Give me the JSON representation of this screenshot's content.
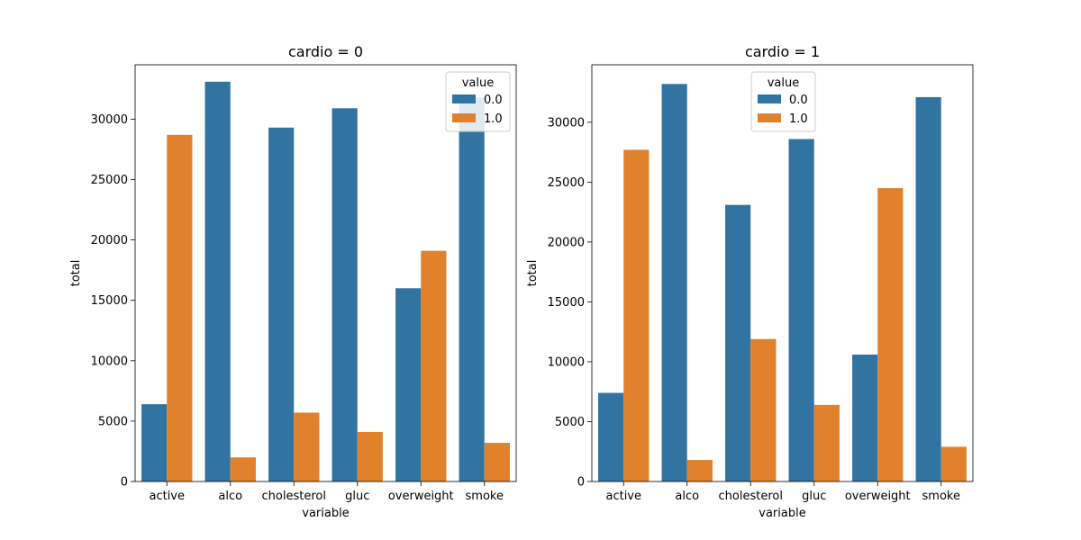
{
  "chart_data": [
    {
      "type": "bar",
      "title": "cardio = 0",
      "xlabel": "variable",
      "ylabel": "total",
      "ylim": [
        0,
        34500
      ],
      "yticks": [
        0,
        5000,
        10000,
        15000,
        20000,
        25000,
        30000
      ],
      "categories": [
        "active",
        "alco",
        "cholesterol",
        "gluc",
        "overweight",
        "smoke"
      ],
      "legend": {
        "title": "value",
        "placement": "top-right"
      },
      "series": [
        {
          "name": "0.0",
          "color": "#3274a1",
          "values": [
            6400,
            33100,
            29300,
            30900,
            16000,
            31800
          ]
        },
        {
          "name": "1.0",
          "color": "#e1812c",
          "values": [
            28700,
            2000,
            5700,
            4100,
            19100,
            3200
          ]
        }
      ]
    },
    {
      "type": "bar",
      "title": "cardio = 1",
      "xlabel": "variable",
      "ylabel": "total",
      "ylim": [
        0,
        34800
      ],
      "yticks": [
        0,
        5000,
        10000,
        15000,
        20000,
        25000,
        30000
      ],
      "categories": [
        "active",
        "alco",
        "cholesterol",
        "gluc",
        "overweight",
        "smoke"
      ],
      "legend": {
        "title": "value",
        "placement": "top-center"
      },
      "series": [
        {
          "name": "0.0",
          "color": "#3274a1",
          "values": [
            7400,
            33200,
            23100,
            28600,
            10600,
            32100
          ]
        },
        {
          "name": "1.0",
          "color": "#e1812c",
          "values": [
            27700,
            1800,
            11900,
            6400,
            24500,
            2900
          ]
        }
      ]
    }
  ]
}
